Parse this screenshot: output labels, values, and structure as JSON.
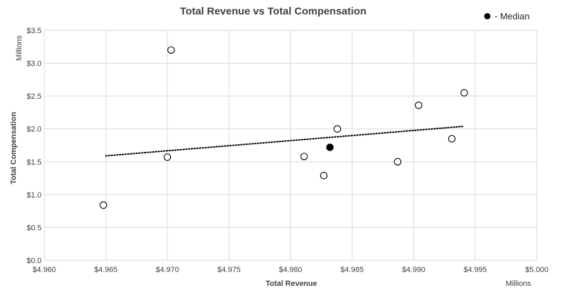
{
  "chart_data": {
    "type": "scatter",
    "title": "Total Revenue vs Total Compensation",
    "xlabel": "Total Revenue",
    "ylabel": "Total Compensation",
    "x_unit": "Millions",
    "y_unit": "Millions",
    "xlim": [
      4.96,
      5.0
    ],
    "ylim": [
      0.0,
      3.5
    ],
    "x_ticks": [
      4.96,
      4.965,
      4.97,
      4.975,
      4.98,
      4.985,
      4.99,
      4.995,
      5.0
    ],
    "x_tick_labels": [
      "$4.960",
      "$4.965",
      "$4.970",
      "$4.975",
      "$4.980",
      "$4.985",
      "$4.990",
      "$4.995",
      "$5.000"
    ],
    "y_ticks": [
      0.0,
      0.5,
      1.0,
      1.5,
      2.0,
      2.5,
      3.0,
      3.5
    ],
    "y_tick_labels": [
      "$0.0",
      "$0.5",
      "$1.0",
      "$1.5",
      "$2.0",
      "$2.5",
      "$3.0",
      "$3.5"
    ],
    "grid": true,
    "legend_position": "top-right",
    "legend": [
      {
        "label": "- Median",
        "marker": "filled-circle"
      }
    ],
    "points": [
      {
        "x": 4.9648,
        "y": 0.84
      },
      {
        "x": 4.97,
        "y": 1.57
      },
      {
        "x": 4.9703,
        "y": 3.2
      },
      {
        "x": 4.9811,
        "y": 1.58
      },
      {
        "x": 4.9827,
        "y": 1.29
      },
      {
        "x": 4.9838,
        "y": 2.0
      },
      {
        "x": 4.9887,
        "y": 1.5
      },
      {
        "x": 4.9904,
        "y": 2.36
      },
      {
        "x": 4.9931,
        "y": 1.85
      },
      {
        "x": 4.9941,
        "y": 2.55
      }
    ],
    "median_point": {
      "x": 4.9832,
      "y": 1.72
    },
    "trendline": {
      "x": [
        4.965,
        4.9941
      ],
      "y": [
        1.59,
        2.04
      ],
      "style": "dotted"
    },
    "colors": {
      "marker_edge": "#000000",
      "median_fill": "#000000",
      "grid": "#d9d9d9",
      "trend": "#000000"
    }
  }
}
